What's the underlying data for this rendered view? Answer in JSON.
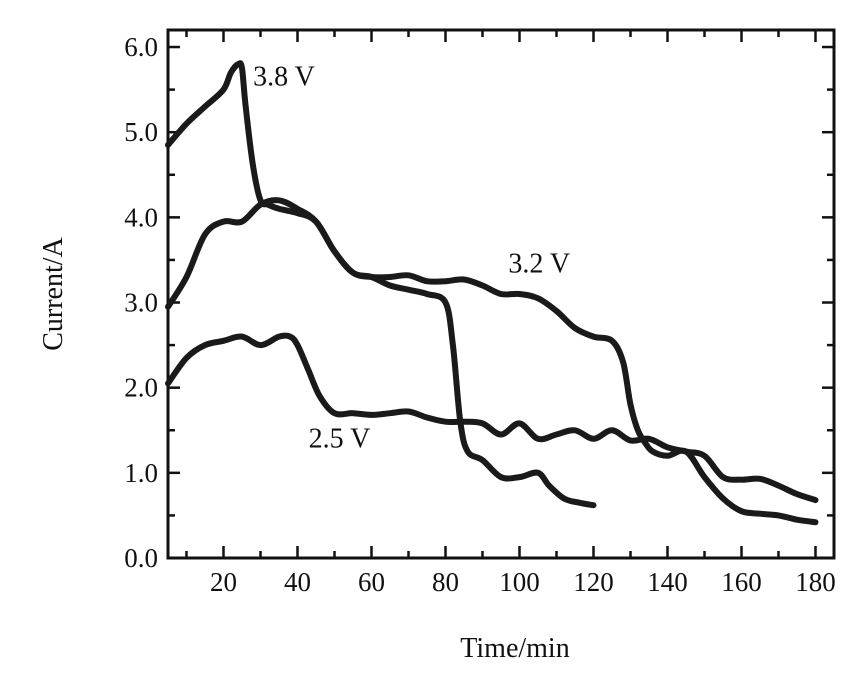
{
  "chart_data": {
    "type": "line",
    "xlabel": "Time/min",
    "ylabel": "Current/A",
    "xlim": [
      5,
      185
    ],
    "ylim": [
      0,
      6.2
    ],
    "x_ticks": [
      20,
      40,
      60,
      80,
      100,
      120,
      140,
      160,
      180
    ],
    "x_tick_labels": [
      "20",
      "40",
      "60",
      "80",
      "100",
      "120",
      "140",
      "160",
      "180"
    ],
    "y_ticks": [
      0,
      1,
      2,
      3,
      4,
      5,
      6
    ],
    "y_tick_labels": [
      "0.0",
      "1.0",
      "2.0",
      "3.0",
      "4.0",
      "5.0",
      "6.0"
    ],
    "grid": false,
    "legend": "none",
    "series": [
      {
        "name": "3.8 V",
        "x": [
          5,
          10,
          15,
          20,
          22,
          24,
          25,
          26,
          28,
          30,
          32,
          35,
          40,
          45,
          50,
          55,
          60,
          65,
          70,
          75,
          80,
          82,
          84,
          86,
          90,
          95,
          100,
          105,
          108,
          112,
          116,
          120
        ],
        "y": [
          4.85,
          5.1,
          5.3,
          5.5,
          5.7,
          5.8,
          5.75,
          5.3,
          4.6,
          4.2,
          4.15,
          4.1,
          4.05,
          3.95,
          3.6,
          3.35,
          3.3,
          3.2,
          3.15,
          3.1,
          3.0,
          2.5,
          1.6,
          1.25,
          1.15,
          0.95,
          0.95,
          1.0,
          0.85,
          0.7,
          0.65,
          0.62
        ]
      },
      {
        "name": "3.2 V",
        "x": [
          5,
          10,
          15,
          20,
          25,
          30,
          35,
          40,
          45,
          50,
          55,
          60,
          65,
          70,
          75,
          80,
          85,
          90,
          95,
          100,
          105,
          110,
          115,
          120,
          125,
          128,
          130,
          132,
          134,
          136,
          140,
          145,
          150,
          155,
          160,
          165,
          170,
          175,
          180
        ],
        "y": [
          2.95,
          3.3,
          3.8,
          3.95,
          3.95,
          4.15,
          4.2,
          4.1,
          3.95,
          3.6,
          3.35,
          3.3,
          3.3,
          3.32,
          3.25,
          3.25,
          3.27,
          3.2,
          3.1,
          3.1,
          3.05,
          2.9,
          2.7,
          2.6,
          2.55,
          2.3,
          1.8,
          1.5,
          1.35,
          1.25,
          1.2,
          1.25,
          0.95,
          0.7,
          0.55,
          0.52,
          0.5,
          0.45,
          0.42
        ]
      },
      {
        "name": "2.5 V",
        "x": [
          5,
          10,
          15,
          20,
          25,
          30,
          35,
          38,
          40,
          43,
          46,
          50,
          55,
          60,
          65,
          70,
          75,
          80,
          85,
          90,
          95,
          100,
          105,
          110,
          115,
          120,
          125,
          130,
          135,
          140,
          145,
          150,
          155,
          160,
          165,
          170,
          175,
          180
        ],
        "y": [
          2.05,
          2.35,
          2.5,
          2.55,
          2.6,
          2.5,
          2.6,
          2.6,
          2.5,
          2.2,
          1.9,
          1.7,
          1.7,
          1.68,
          1.7,
          1.72,
          1.65,
          1.6,
          1.6,
          1.58,
          1.45,
          1.58,
          1.4,
          1.45,
          1.5,
          1.4,
          1.5,
          1.38,
          1.4,
          1.3,
          1.25,
          1.2,
          0.95,
          0.92,
          0.93,
          0.85,
          0.75,
          0.68
        ]
      }
    ]
  }
}
